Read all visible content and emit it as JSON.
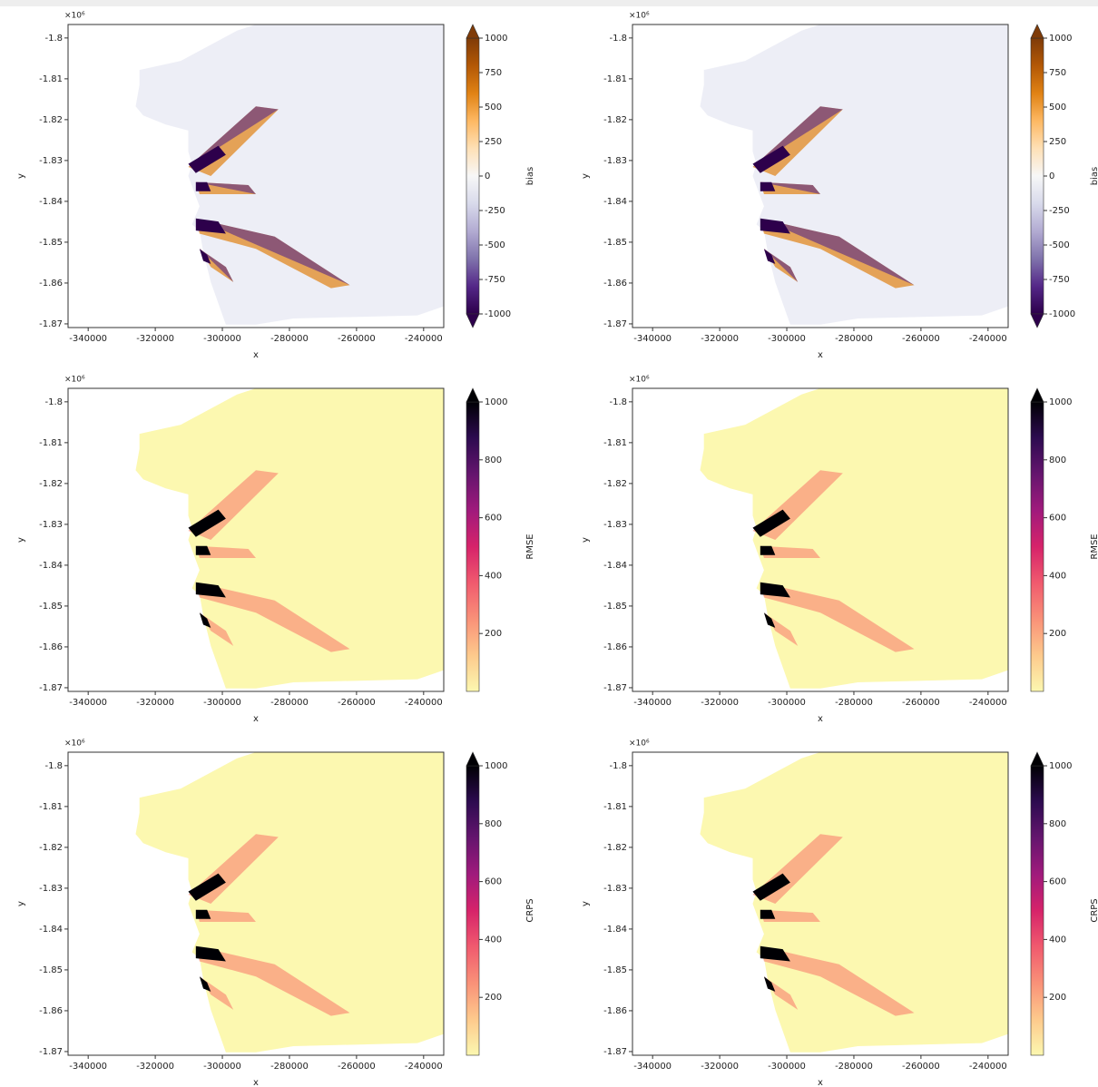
{
  "chart_data": [
    {
      "type": "heatmap",
      "xlabel": "x",
      "ylabel": "y",
      "y_offset": "×10⁶",
      "xlim": [
        -346000,
        -234000
      ],
      "xticks": [
        -340000,
        -320000,
        -300000,
        -280000,
        -260000,
        -240000
      ],
      "ylim": [
        -1.8709,
        -1.7967
      ],
      "yticks": [
        -1.8,
        -1.81,
        -1.82,
        -1.83,
        -1.84,
        -1.85,
        -1.86,
        -1.87
      ],
      "colorbar": {
        "label": "bias",
        "lim": [
          -1000,
          1000
        ],
        "ticks": [
          -1000,
          -750,
          -500,
          -250,
          0,
          250,
          500,
          750,
          1000
        ],
        "extend": "both",
        "colors": [
          "#2d004b",
          "#542788",
          "#8073ac",
          "#b2abd2",
          "#d8daeb",
          "#f7f7f7",
          "#fee0b6",
          "#fdb863",
          "#e08214",
          "#b35806",
          "#7f3b08"
        ]
      }
    },
    {
      "type": "heatmap",
      "xlabel": "x",
      "ylabel": "y",
      "y_offset": "×10⁶",
      "xlim": [
        -346000,
        -234000
      ],
      "xticks": [
        -340000,
        -320000,
        -300000,
        -280000,
        -260000,
        -240000
      ],
      "ylim": [
        -1.8709,
        -1.7967
      ],
      "yticks": [
        -1.8,
        -1.81,
        -1.82,
        -1.83,
        -1.84,
        -1.85,
        -1.86,
        -1.87
      ],
      "colorbar": {
        "label": "bias",
        "lim": [
          -1000,
          1000
        ],
        "ticks": [
          -1000,
          -750,
          -500,
          -250,
          0,
          250,
          500,
          750,
          1000
        ],
        "extend": "both",
        "colors": [
          "#2d004b",
          "#542788",
          "#8073ac",
          "#b2abd2",
          "#d8daeb",
          "#f7f7f7",
          "#fee0b6",
          "#fdb863",
          "#e08214",
          "#b35806",
          "#7f3b08"
        ]
      }
    },
    {
      "type": "heatmap",
      "xlabel": "x",
      "ylabel": "y",
      "y_offset": "×10⁶",
      "xlim": [
        -346000,
        -234000
      ],
      "xticks": [
        -340000,
        -320000,
        -300000,
        -280000,
        -260000,
        -240000
      ],
      "ylim": [
        -1.8709,
        -1.7967
      ],
      "yticks": [
        -1.8,
        -1.81,
        -1.82,
        -1.83,
        -1.84,
        -1.85,
        -1.86,
        -1.87
      ],
      "colorbar": {
        "label": "RMSE",
        "lim": [
          0,
          1000
        ],
        "ticks": [
          200,
          400,
          600,
          800,
          1000
        ],
        "extend": "max",
        "colors": [
          "#fcf8b0",
          "#fdc98c",
          "#f99178",
          "#f05a6e",
          "#d6236a",
          "#a01a7c",
          "#65156e",
          "#2d0b50",
          "#000004"
        ]
      }
    },
    {
      "type": "heatmap",
      "xlabel": "x",
      "ylabel": "y",
      "y_offset": "×10⁶",
      "xlim": [
        -346000,
        -234000
      ],
      "xticks": [
        -340000,
        -320000,
        -300000,
        -280000,
        -260000,
        -240000
      ],
      "ylim": [
        -1.8709,
        -1.7967
      ],
      "yticks": [
        -1.8,
        -1.81,
        -1.82,
        -1.83,
        -1.84,
        -1.85,
        -1.86,
        -1.87
      ],
      "colorbar": {
        "label": "RMSE",
        "lim": [
          0,
          1000
        ],
        "ticks": [
          200,
          400,
          600,
          800,
          1000
        ],
        "extend": "max",
        "colors": [
          "#fcf8b0",
          "#fdc98c",
          "#f99178",
          "#f05a6e",
          "#d6236a",
          "#a01a7c",
          "#65156e",
          "#2d0b50",
          "#000004"
        ]
      }
    },
    {
      "type": "heatmap",
      "xlabel": "x",
      "ylabel": "y",
      "y_offset": "×10⁶",
      "xlim": [
        -346000,
        -234000
      ],
      "xticks": [
        -340000,
        -320000,
        -300000,
        -280000,
        -260000,
        -240000
      ],
      "ylim": [
        -1.8709,
        -1.7967
      ],
      "yticks": [
        -1.8,
        -1.81,
        -1.82,
        -1.83,
        -1.84,
        -1.85,
        -1.86,
        -1.87
      ],
      "colorbar": {
        "label": "CRPS",
        "lim": [
          0,
          1000
        ],
        "ticks": [
          200,
          400,
          600,
          800,
          1000
        ],
        "extend": "max",
        "colors": [
          "#fcf8b0",
          "#fdc98c",
          "#f99178",
          "#f05a6e",
          "#d6236a",
          "#a01a7c",
          "#65156e",
          "#2d0b50",
          "#000004"
        ]
      }
    },
    {
      "type": "heatmap",
      "xlabel": "x",
      "ylabel": "y",
      "y_offset": "×10⁶",
      "xlim": [
        -346000,
        -234000
      ],
      "xticks": [
        -340000,
        -320000,
        -300000,
        -280000,
        -260000,
        -240000
      ],
      "ylim": [
        -1.8709,
        -1.7967
      ],
      "yticks": [
        -1.8,
        -1.81,
        -1.82,
        -1.83,
        -1.84,
        -1.85,
        -1.86,
        -1.87
      ],
      "colorbar": {
        "label": "CRPS",
        "lim": [
          0,
          1000
        ],
        "ticks": [
          200,
          400,
          600,
          800,
          1000
        ],
        "extend": "max",
        "colors": [
          "#fcf8b0",
          "#fdc98c",
          "#f99178",
          "#f05a6e",
          "#d6236a",
          "#a01a7c",
          "#65156e",
          "#2d0b50",
          "#000004"
        ]
      }
    }
  ]
}
